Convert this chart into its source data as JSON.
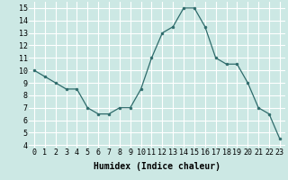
{
  "x": [
    0,
    1,
    2,
    3,
    4,
    5,
    6,
    7,
    8,
    9,
    10,
    11,
    12,
    13,
    14,
    15,
    16,
    17,
    18,
    19,
    20,
    21,
    22,
    23
  ],
  "y": [
    10,
    9.5,
    9,
    8.5,
    8.5,
    7,
    6.5,
    6.5,
    7,
    7,
    8.5,
    11,
    13,
    13.5,
    15,
    15,
    13.5,
    11,
    10.5,
    10.5,
    9,
    7,
    6.5,
    4.5
  ],
  "xlabel": "Humidex (Indice chaleur)",
  "xlim": [
    -0.5,
    23.5
  ],
  "ylim": [
    3.8,
    15.5
  ],
  "yticks": [
    4,
    5,
    6,
    7,
    8,
    9,
    10,
    11,
    12,
    13,
    14,
    15
  ],
  "xticks": [
    0,
    1,
    2,
    3,
    4,
    5,
    6,
    7,
    8,
    9,
    10,
    11,
    12,
    13,
    14,
    15,
    16,
    17,
    18,
    19,
    20,
    21,
    22,
    23
  ],
  "line_color": "#2e6b6b",
  "marker_color": "#2e6b6b",
  "bg_color": "#cce8e4",
  "grid_color": "#ffffff",
  "label_fontsize": 7,
  "tick_fontsize": 6
}
